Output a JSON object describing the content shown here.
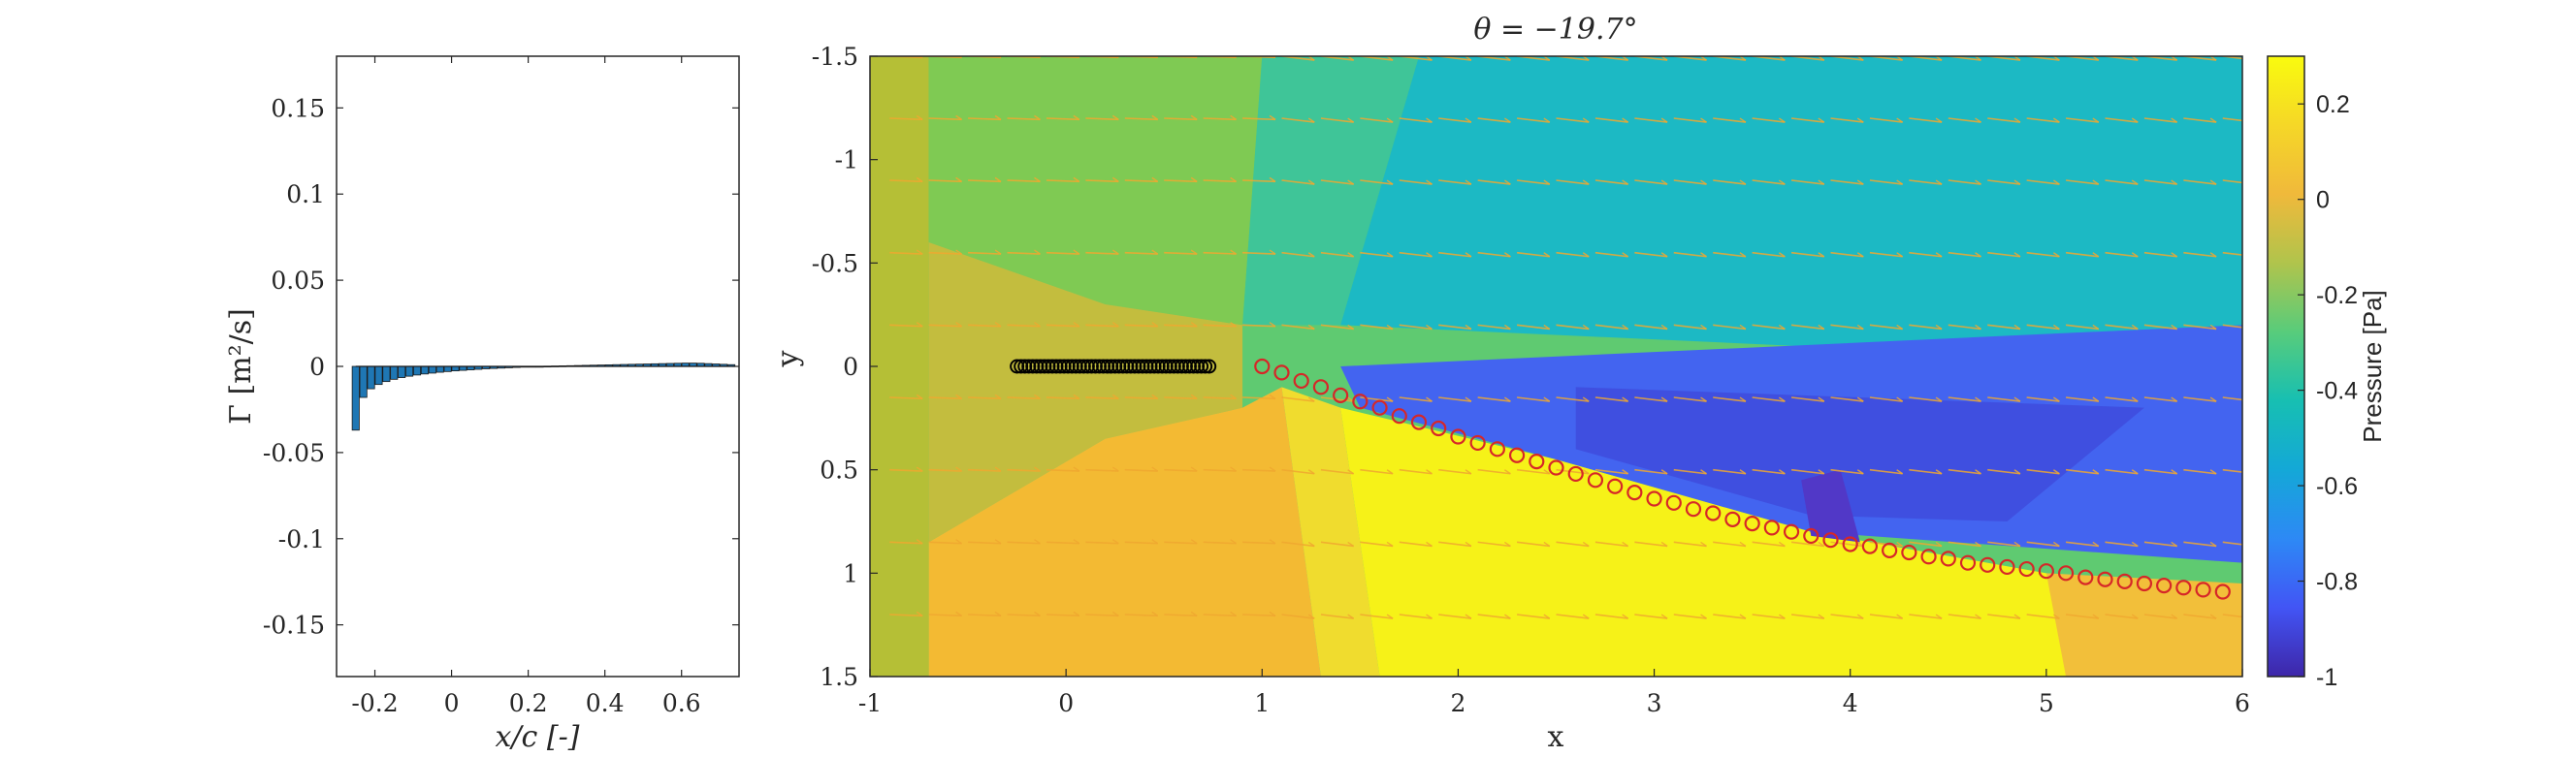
{
  "chart_data": [
    {
      "type": "bar",
      "xlabel": "x/c [-]",
      "ylabel": "Γ [m²/s]",
      "xlim": [
        -0.3,
        0.75
      ],
      "ylim": [
        -0.18,
        0.18
      ],
      "xticks": [
        "-0.2",
        "0",
        "0.2",
        "0.4",
        "0.6"
      ],
      "xtick_values": [
        -0.2,
        0,
        0.2,
        0.4,
        0.6
      ],
      "yticks": [
        "0.15",
        "0.1",
        "0.05",
        "0",
        "-0.05",
        "-0.1",
        "-0.15"
      ],
      "ytick_values": [
        0.15,
        0.1,
        0.05,
        0,
        -0.05,
        -0.1,
        -0.15
      ],
      "bar_color": "#1f77b4",
      "x": [
        -0.25,
        -0.23,
        -0.21,
        -0.19,
        -0.17,
        -0.15,
        -0.13,
        -0.11,
        -0.09,
        -0.07,
        -0.05,
        -0.03,
        -0.01,
        0.01,
        0.03,
        0.05,
        0.07,
        0.09,
        0.11,
        0.13,
        0.15,
        0.17,
        0.19,
        0.21,
        0.23,
        0.25,
        0.27,
        0.29,
        0.31,
        0.33,
        0.35,
        0.37,
        0.39,
        0.41,
        0.43,
        0.45,
        0.47,
        0.49,
        0.51,
        0.53,
        0.55,
        0.57,
        0.59,
        0.61,
        0.63,
        0.65,
        0.67,
        0.69,
        0.71,
        0.73
      ],
      "values": [
        -0.037,
        -0.018,
        -0.013,
        -0.0105,
        -0.0088,
        -0.0075,
        -0.0065,
        -0.0057,
        -0.005,
        -0.0044,
        -0.0039,
        -0.0034,
        -0.003,
        -0.0026,
        -0.0023,
        -0.002,
        -0.0017,
        -0.0014,
        -0.0012,
        -0.001,
        -0.0008,
        -0.0006,
        -0.0004,
        -0.0002,
        0.0,
        0.0001,
        0.0002,
        0.0003,
        0.0004,
        0.0005,
        0.0006,
        0.0007,
        0.0008,
        0.0009,
        0.001,
        0.0011,
        0.0012,
        0.0013,
        0.0014,
        0.0015,
        0.0016,
        0.0017,
        0.0018,
        0.0019,
        0.0019,
        0.0018,
        0.0016,
        0.0014,
        0.0012,
        0.001
      ]
    },
    {
      "type": "heatmap",
      "title": "θ = −19.7°",
      "xlabel": "x",
      "ylabel": "y",
      "xlim": [
        -1,
        6
      ],
      "ylim": [
        -1.5,
        1.5
      ],
      "y_reversed": true,
      "xticks": [
        "-1",
        "0",
        "1",
        "2",
        "3",
        "4",
        "5",
        "6"
      ],
      "xtick_values": [
        -1,
        0,
        1,
        2,
        3,
        4,
        5,
        6
      ],
      "yticks": [
        "-1.5",
        "-1",
        "-0.5",
        "0",
        "0.5",
        "1",
        "1.5"
      ],
      "ytick_values": [
        -1.5,
        -1,
        -0.5,
        0,
        0.5,
        1,
        1.5
      ],
      "colorbar": {
        "label": "Pressure [Pa]",
        "clim": [
          -1,
          0.3
        ],
        "ticks": [
          "0.2",
          "0",
          "-0.2",
          "-0.4",
          "-0.6",
          "-0.8",
          "-1"
        ],
        "tick_values": [
          0.2,
          0,
          -0.2,
          -0.4,
          -0.6,
          -0.8,
          -1
        ],
        "colormap": [
          "#3e26a8",
          "#4255f5",
          "#2d89f5",
          "#14a8d7",
          "#17bfb2",
          "#58cc7b",
          "#b0c44c",
          "#f0b93b",
          "#f5d727",
          "#f9fb0e"
        ]
      },
      "regions": [
        {
          "name": "left-wall",
          "color": "#b5bf36",
          "points": [
            [
              -1,
              -1.5
            ],
            [
              -0.7,
              -1.5
            ],
            [
              -0.7,
              1.5
            ],
            [
              -1,
              1.5
            ]
          ]
        },
        {
          "name": "upper-green",
          "color": "#7fca53",
          "points": [
            [
              -0.7,
              -1.5
            ],
            [
              1.0,
              -1.5
            ],
            [
              0.9,
              -0.2
            ],
            [
              0.2,
              -0.3
            ],
            [
              -0.7,
              -0.6
            ]
          ]
        },
        {
          "name": "upper-teal",
          "color": "#3fc598",
          "points": [
            [
              1.0,
              -1.5
            ],
            [
              1.8,
              -1.5
            ],
            [
              1.4,
              -0.2
            ],
            [
              0.9,
              -0.2
            ]
          ]
        },
        {
          "name": "upper-cyan",
          "color": "#1cb9c4",
          "points": [
            [
              1.8,
              -1.5
            ],
            [
              6,
              -1.5
            ],
            [
              6,
              0.0
            ],
            [
              1.4,
              -0.2
            ]
          ]
        },
        {
          "name": "left-olive",
          "color": "#c3bd3e",
          "points": [
            [
              -0.7,
              -0.6
            ],
            [
              0.2,
              -0.3
            ],
            [
              0.9,
              -0.2
            ],
            [
              0.9,
              0.2
            ],
            [
              0.2,
              0.35
            ],
            [
              -0.7,
              0.85
            ]
          ]
        },
        {
          "name": "lower-orange",
          "color": "#f3ba33",
          "points": [
            [
              -0.7,
              0.85
            ],
            [
              0.2,
              0.35
            ],
            [
              0.9,
              0.2
            ],
            [
              1.1,
              0.1
            ],
            [
              1.3,
              1.5
            ],
            [
              -0.7,
              1.5
            ]
          ]
        },
        {
          "name": "lower-yellow-orange",
          "color": "#f0dc2e",
          "points": [
            [
              1.1,
              0.1
            ],
            [
              1.4,
              0.2
            ],
            [
              1.6,
              1.5
            ],
            [
              1.3,
              1.5
            ]
          ]
        },
        {
          "name": "lower-yellow",
          "color": "#f6f218",
          "points": [
            [
              1.4,
              0.2
            ],
            [
              2.5,
              0.45
            ],
            [
              3.8,
              0.8
            ],
            [
              5.0,
              1.0
            ],
            [
              6,
              1.1
            ],
            [
              6,
              1.5
            ],
            [
              1.6,
              1.5
            ]
          ]
        },
        {
          "name": "right-orange",
          "color": "#f2bf3a",
          "points": [
            [
              5.0,
              1.0
            ],
            [
              6,
              1.05
            ],
            [
              6,
              1.5
            ],
            [
              5.1,
              1.5
            ]
          ]
        },
        {
          "name": "blue-wake",
          "color": "#4364f0",
          "points": [
            [
              1.4,
              0.0
            ],
            [
              6,
              -0.2
            ],
            [
              6,
              0.95
            ],
            [
              3.8,
              0.8
            ],
            [
              2.5,
              0.45
            ],
            [
              1.5,
              0.2
            ]
          ]
        },
        {
          "name": "blue-wake-deep",
          "color": "#3f4fe0",
          "points": [
            [
              2.6,
              0.1
            ],
            [
              5.5,
              0.2
            ],
            [
              4.8,
              0.75
            ],
            [
              3.8,
              0.72
            ],
            [
              2.6,
              0.4
            ]
          ]
        },
        {
          "name": "wake-core",
          "color": "#5138c7",
          "points": [
            [
              3.75,
              0.55
            ],
            [
              3.95,
              0.5
            ],
            [
              4.05,
              0.85
            ],
            [
              3.8,
              0.82
            ]
          ]
        }
      ],
      "plate_markers": {
        "x": [
          -0.25,
          -0.23,
          -0.21,
          -0.19,
          -0.17,
          -0.15,
          -0.13,
          -0.11,
          -0.09,
          -0.07,
          -0.05,
          -0.03,
          -0.01,
          0.01,
          0.03,
          0.05,
          0.07,
          0.09,
          0.11,
          0.13,
          0.15,
          0.17,
          0.19,
          0.21,
          0.23,
          0.25,
          0.27,
          0.29,
          0.31,
          0.33,
          0.35,
          0.37,
          0.39,
          0.41,
          0.43,
          0.45,
          0.47,
          0.49,
          0.51,
          0.53,
          0.55,
          0.57,
          0.59,
          0.61,
          0.63,
          0.65,
          0.67,
          0.69,
          0.71,
          0.73
        ],
        "y": 0,
        "color": "#000000"
      },
      "wake_markers": {
        "color": "#d62728",
        "x": [
          1.0,
          1.1,
          1.2,
          1.3,
          1.4,
          1.5,
          1.6,
          1.7,
          1.8,
          1.9,
          2.0,
          2.1,
          2.2,
          2.3,
          2.4,
          2.5,
          2.6,
          2.7,
          2.8,
          2.9,
          3.0,
          3.1,
          3.2,
          3.3,
          3.4,
          3.5,
          3.6,
          3.7,
          3.8,
          3.9,
          4.0,
          4.1,
          4.2,
          4.3,
          4.4,
          4.5,
          4.6,
          4.7,
          4.8,
          4.9,
          5.0,
          5.1,
          5.2,
          5.3,
          5.4,
          5.5,
          5.6,
          5.7,
          5.8,
          5.9
        ],
        "y": [
          0.0,
          0.03,
          0.07,
          0.1,
          0.14,
          0.17,
          0.2,
          0.24,
          0.27,
          0.3,
          0.34,
          0.37,
          0.4,
          0.43,
          0.46,
          0.49,
          0.52,
          0.55,
          0.58,
          0.61,
          0.64,
          0.66,
          0.69,
          0.71,
          0.74,
          0.76,
          0.78,
          0.8,
          0.82,
          0.84,
          0.86,
          0.87,
          0.89,
          0.9,
          0.92,
          0.93,
          0.95,
          0.96,
          0.97,
          0.98,
          0.99,
          1.0,
          1.02,
          1.03,
          1.04,
          1.05,
          1.06,
          1.07,
          1.08,
          1.09
        ]
      },
      "quiver": {
        "color": "#f0a830",
        "rows_y": [
          -1.5,
          -1.2,
          -0.9,
          -0.55,
          -0.2,
          0.15,
          0.5,
          0.85,
          1.2,
          1.55
        ]
      }
    }
  ]
}
